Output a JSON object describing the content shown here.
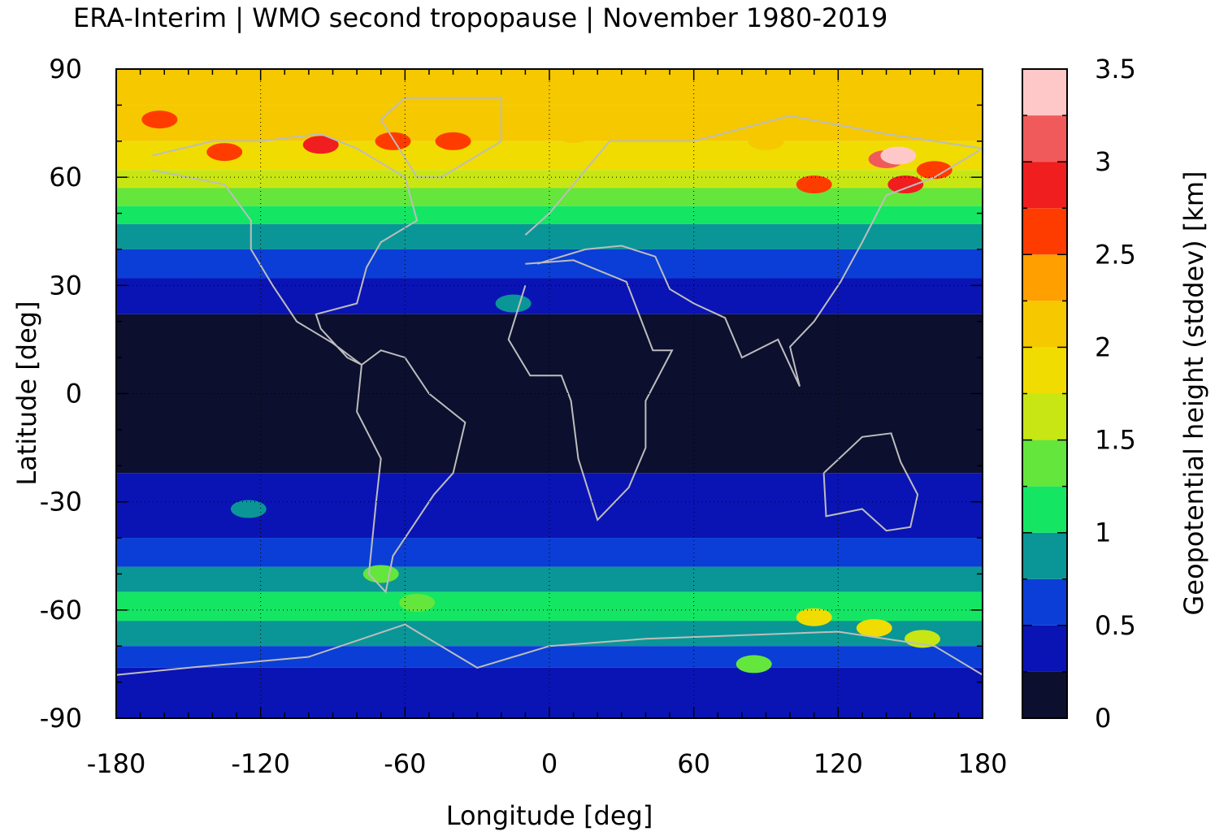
{
  "chart_data": {
    "type": "heatmap",
    "title": "ERA-Interim | WMO second tropopause | November 1980-2019",
    "xlabel": "Longitude [deg]",
    "ylabel": "Latitude [deg]",
    "colorbar_label": "Geopotential height (stddev) [km]",
    "xlim": [
      -180,
      180
    ],
    "ylim": [
      -90,
      90
    ],
    "x_ticks": [
      -180,
      -120,
      -60,
      0,
      60,
      120,
      180
    ],
    "y_ticks": [
      90,
      60,
      30,
      0,
      -30,
      -60,
      -90
    ],
    "x_tick_labels": [
      "-180",
      "-120",
      "-60",
      "0",
      "60",
      "120",
      "180"
    ],
    "y_tick_labels": [
      "90",
      "60",
      "30",
      "0",
      "-30",
      "-60",
      "-90"
    ],
    "grid": true,
    "colorbar": {
      "range": [
        0,
        3.5
      ],
      "step": 0.25,
      "tick_values": [
        0,
        0.5,
        1,
        1.5,
        2,
        2.5,
        3,
        3.5
      ],
      "tick_labels": [
        "0",
        "0.5",
        "1",
        "1.5",
        "2",
        "2.5",
        "3",
        "3.5"
      ],
      "colors": [
        "#0c0f2e",
        "#0a14b4",
        "#0a3ed6",
        "#0a9696",
        "#14e664",
        "#64e63c",
        "#c8e614",
        "#f0dc00",
        "#f5c800",
        "#ffa000",
        "#ff3c00",
        "#f01e1e",
        "#f05a5a",
        "#ffc8c8"
      ]
    },
    "zonal_bands": [
      {
        "lat_from": 90,
        "lat_to": 80,
        "value": 2.1
      },
      {
        "lat_from": 80,
        "lat_to": 70,
        "value": 2.0
      },
      {
        "lat_from": 70,
        "lat_to": 62,
        "value": 1.9
      },
      {
        "lat_from": 62,
        "lat_to": 57,
        "value": 1.65
      },
      {
        "lat_from": 57,
        "lat_to": 52,
        "value": 1.4
      },
      {
        "lat_from": 52,
        "lat_to": 47,
        "value": 1.2
      },
      {
        "lat_from": 47,
        "lat_to": 40,
        "value": 0.9
      },
      {
        "lat_from": 40,
        "lat_to": 32,
        "value": 0.6
      },
      {
        "lat_from": 32,
        "lat_to": 22,
        "value": 0.4
      },
      {
        "lat_from": 22,
        "lat_to": -22,
        "value": 0.1
      },
      {
        "lat_from": -22,
        "lat_to": -40,
        "value": 0.4
      },
      {
        "lat_from": -40,
        "lat_to": -48,
        "value": 0.6
      },
      {
        "lat_from": -48,
        "lat_to": -55,
        "value": 0.9
      },
      {
        "lat_from": -55,
        "lat_to": -63,
        "value": 1.1
      },
      {
        "lat_from": -63,
        "lat_to": -70,
        "value": 0.9
      },
      {
        "lat_from": -70,
        "lat_to": -76,
        "value": 0.6
      },
      {
        "lat_from": -76,
        "lat_to": -90,
        "value": 0.4
      }
    ],
    "anomalies": [
      {
        "lon": -135,
        "lat": 67,
        "value": 2.7
      },
      {
        "lon": -95,
        "lat": 69,
        "value": 2.8
      },
      {
        "lon": -65,
        "lat": 70,
        "value": 2.6
      },
      {
        "lon": -40,
        "lat": 70,
        "value": 2.5
      },
      {
        "lon": -162,
        "lat": 76,
        "value": 2.7
      },
      {
        "lon": 140,
        "lat": 65,
        "value": 3.0
      },
      {
        "lon": 148,
        "lat": 58,
        "value": 2.8
      },
      {
        "lon": 110,
        "lat": 58,
        "value": 2.6
      },
      {
        "lon": 160,
        "lat": 62,
        "value": 2.7
      },
      {
        "lon": 145,
        "lat": 66,
        "value": 3.3
      },
      {
        "lon": 10,
        "lat": 72,
        "value": 2.2
      },
      {
        "lon": 90,
        "lat": 70,
        "value": 2.1
      },
      {
        "lon": -15,
        "lat": 25,
        "value": 0.8
      },
      {
        "lon": -125,
        "lat": -32,
        "value": 0.9
      },
      {
        "lon": -70,
        "lat": -50,
        "value": 1.3
      },
      {
        "lon": -55,
        "lat": -58,
        "value": 1.3
      },
      {
        "lon": 110,
        "lat": -62,
        "value": 1.8
      },
      {
        "lon": 135,
        "lat": -65,
        "value": 1.8
      },
      {
        "lon": 155,
        "lat": -68,
        "value": 1.7
      },
      {
        "lon": 85,
        "lat": -75,
        "value": 1.3
      }
    ]
  }
}
